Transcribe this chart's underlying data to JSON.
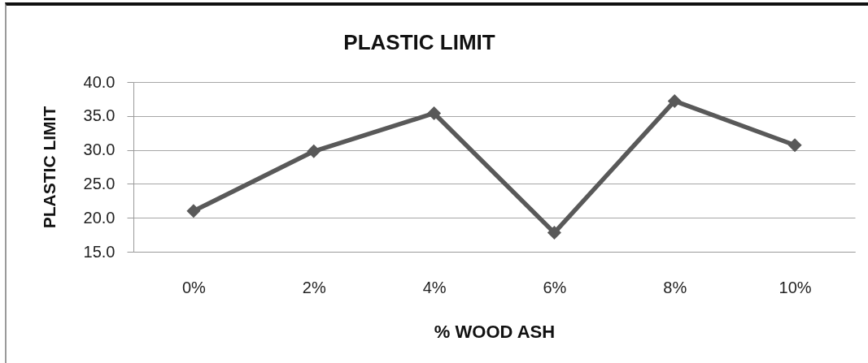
{
  "chart_data": {
    "type": "line",
    "title": "PLASTIC LIMIT",
    "xlabel": "% WOOD ASH",
    "ylabel": "PLASTIC LIMIT",
    "categories": [
      "0%",
      "2%",
      "4%",
      "6%",
      "8%",
      "10%"
    ],
    "series": [
      {
        "color": "#595959",
        "values": [
          21.0,
          29.8,
          35.4,
          17.8,
          37.2,
          30.7
        ]
      }
    ],
    "ylim": [
      15,
      40
    ],
    "yticks": [
      {
        "value": 15,
        "label": "15.0"
      },
      {
        "value": 20,
        "label": "20.0"
      },
      {
        "value": 25,
        "label": "25.0"
      },
      {
        "value": 30,
        "label": "30.0"
      },
      {
        "value": 35,
        "label": "35.0"
      },
      {
        "value": 40,
        "label": "40.0"
      }
    ],
    "grid": "y",
    "marker": "diamond",
    "line_style": "solid"
  }
}
